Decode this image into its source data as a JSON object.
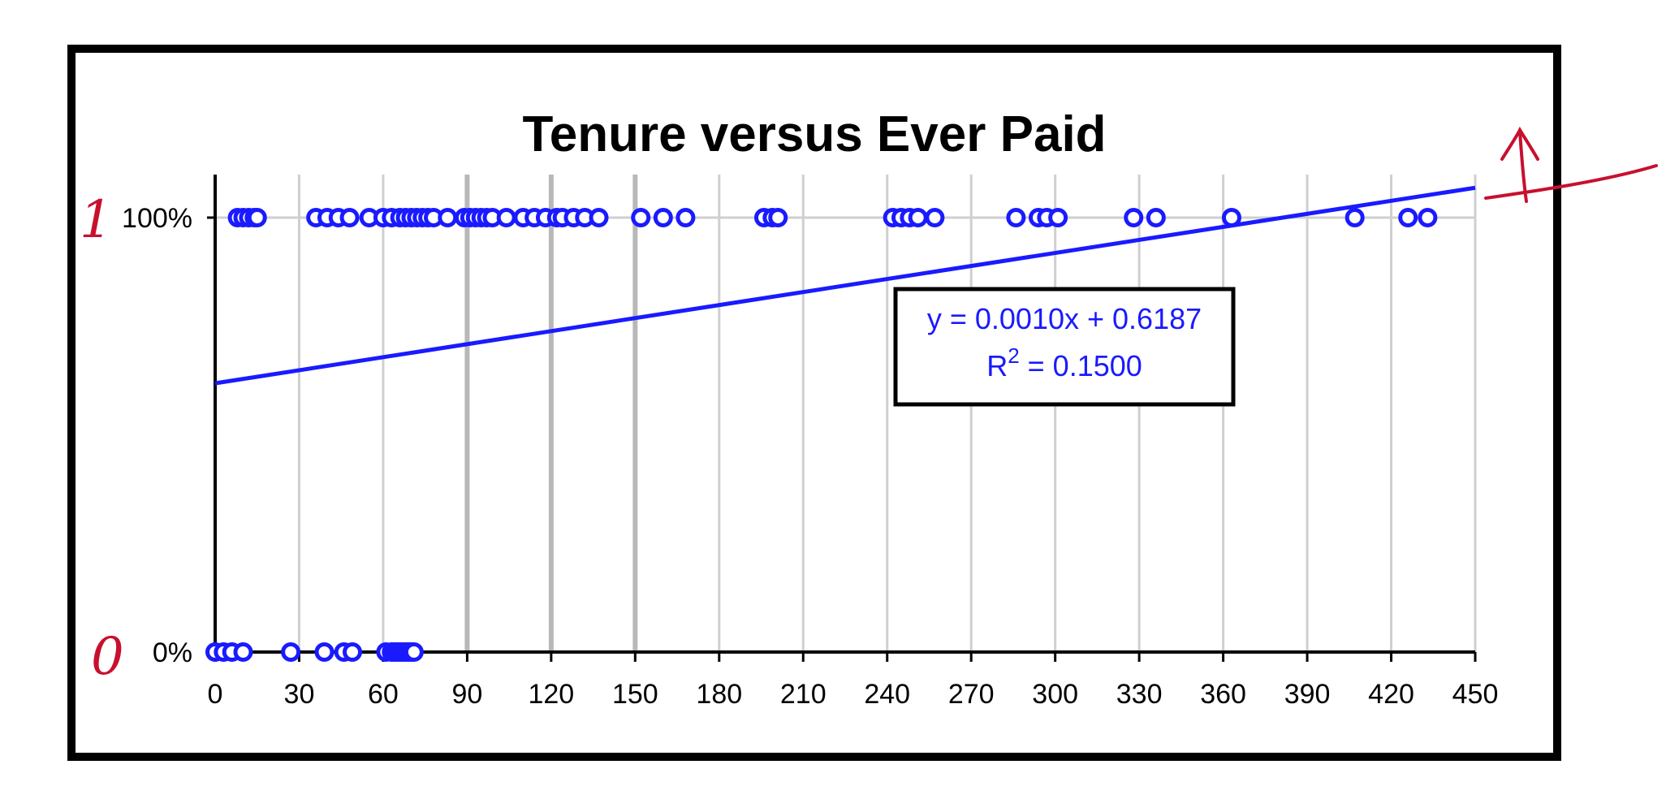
{
  "colors": {
    "marker": "#1a1aff",
    "trendline": "#1a1aff",
    "grid_major": "#b8b8b8",
    "grid_minor": "#cfcfcf",
    "frame": "#000000",
    "annotation": "#c8102e"
  },
  "chart_data": {
    "type": "scatter",
    "title": "Tenure versus Ever Paid",
    "xlabel": "",
    "ylabel": "",
    "xlim": [
      0,
      450
    ],
    "ylim": [
      0,
      1
    ],
    "x_ticks": [
      0,
      30,
      60,
      90,
      120,
      150,
      180,
      210,
      240,
      270,
      300,
      330,
      360,
      390,
      420,
      450
    ],
    "x_tick_labels": [
      "0",
      "30",
      "60",
      "90",
      "120",
      "150",
      "180",
      "210",
      "240",
      "270",
      "300",
      "330",
      "360",
      "390",
      "420",
      "450"
    ],
    "y_ticks": [
      0,
      1
    ],
    "y_tick_labels": [
      "0%",
      "100%"
    ],
    "grid": true,
    "legend": "none",
    "series": [
      {
        "marker": "open-circle",
        "points": [
          {
            "x": 8,
            "y": 1
          },
          {
            "x": 10,
            "y": 1
          },
          {
            "x": 12,
            "y": 1
          },
          {
            "x": 14,
            "y": 1
          },
          {
            "x": 15,
            "y": 1
          },
          {
            "x": 36,
            "y": 1
          },
          {
            "x": 40,
            "y": 1
          },
          {
            "x": 44,
            "y": 1
          },
          {
            "x": 48,
            "y": 1
          },
          {
            "x": 55,
            "y": 1
          },
          {
            "x": 60,
            "y": 1
          },
          {
            "x": 63,
            "y": 1
          },
          {
            "x": 66,
            "y": 1
          },
          {
            "x": 68,
            "y": 1
          },
          {
            "x": 70,
            "y": 1
          },
          {
            "x": 72,
            "y": 1
          },
          {
            "x": 74,
            "y": 1
          },
          {
            "x": 76,
            "y": 1
          },
          {
            "x": 78,
            "y": 1
          },
          {
            "x": 83,
            "y": 1
          },
          {
            "x": 89,
            "y": 1
          },
          {
            "x": 91,
            "y": 1
          },
          {
            "x": 93,
            "y": 1
          },
          {
            "x": 95,
            "y": 1
          },
          {
            "x": 97,
            "y": 1
          },
          {
            "x": 99,
            "y": 1
          },
          {
            "x": 104,
            "y": 1
          },
          {
            "x": 110,
            "y": 1
          },
          {
            "x": 114,
            "y": 1
          },
          {
            "x": 118,
            "y": 1
          },
          {
            "x": 122,
            "y": 1
          },
          {
            "x": 124,
            "y": 1
          },
          {
            "x": 128,
            "y": 1
          },
          {
            "x": 132,
            "y": 1
          },
          {
            "x": 137,
            "y": 1
          },
          {
            "x": 152,
            "y": 1
          },
          {
            "x": 160,
            "y": 1
          },
          {
            "x": 168,
            "y": 1
          },
          {
            "x": 196,
            "y": 1
          },
          {
            "x": 199,
            "y": 1
          },
          {
            "x": 201,
            "y": 1
          },
          {
            "x": 242,
            "y": 1
          },
          {
            "x": 245,
            "y": 1
          },
          {
            "x": 248,
            "y": 1
          },
          {
            "x": 251,
            "y": 1
          },
          {
            "x": 257,
            "y": 1
          },
          {
            "x": 286,
            "y": 1
          },
          {
            "x": 294,
            "y": 1
          },
          {
            "x": 297,
            "y": 1
          },
          {
            "x": 301,
            "y": 1
          },
          {
            "x": 328,
            "y": 1
          },
          {
            "x": 336,
            "y": 1
          },
          {
            "x": 363,
            "y": 1
          },
          {
            "x": 407,
            "y": 1
          },
          {
            "x": 426,
            "y": 1
          },
          {
            "x": 433,
            "y": 1
          },
          {
            "x": 0,
            "y": 0
          },
          {
            "x": 3,
            "y": 0
          },
          {
            "x": 6,
            "y": 0
          },
          {
            "x": 10,
            "y": 0
          },
          {
            "x": 27,
            "y": 0
          },
          {
            "x": 39,
            "y": 0
          },
          {
            "x": 46,
            "y": 0
          },
          {
            "x": 49,
            "y": 0
          },
          {
            "x": 61,
            "y": 0
          },
          {
            "x": 63,
            "y": 0
          },
          {
            "x": 64,
            "y": 0
          },
          {
            "x": 65,
            "y": 0
          },
          {
            "x": 66,
            "y": 0
          },
          {
            "x": 67,
            "y": 0
          },
          {
            "x": 68,
            "y": 0
          },
          {
            "x": 69,
            "y": 0
          },
          {
            "x": 70,
            "y": 0
          },
          {
            "x": 71,
            "y": 0
          }
        ]
      }
    ],
    "trendline": {
      "type": "linear",
      "slope": 0.001,
      "intercept": 0.6187,
      "x_range": [
        0,
        450
      ],
      "equation_label": "y = 0.0010x + 0.6187",
      "r2_prefix": "R",
      "r2_exponent": "2",
      "r2_value": " = 0.1500"
    }
  },
  "annotations": {
    "left_one": "1",
    "left_zero": "0"
  }
}
